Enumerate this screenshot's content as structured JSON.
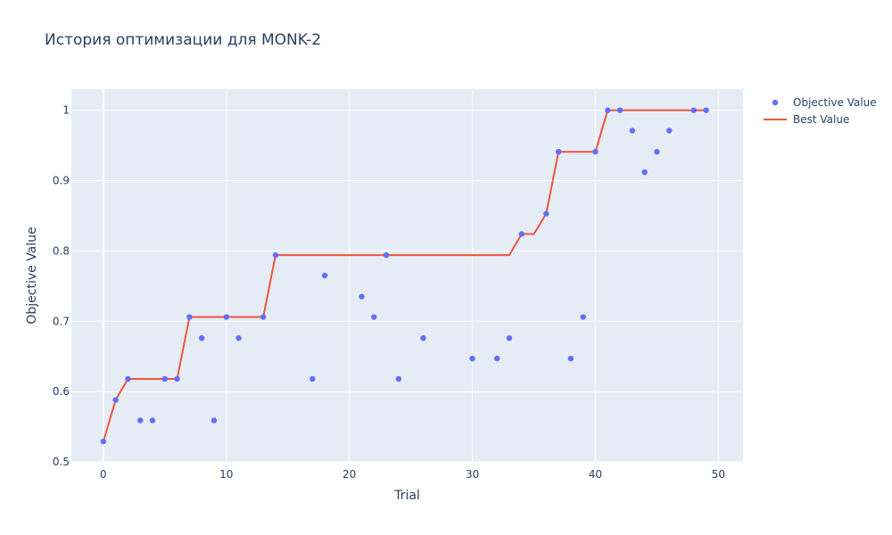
{
  "chart_data": {
    "type": "line",
    "title": "История оптимизации для MONK-2",
    "xlabel": "Trial",
    "ylabel": "Objective Value",
    "xlim": [
      -2.6,
      52.0
    ],
    "ylim": [
      0.5,
      1.03
    ],
    "x_ticks": [
      0,
      10,
      20,
      30,
      40,
      50
    ],
    "y_ticks": [
      0.5,
      0.6,
      0.7,
      0.8,
      0.9,
      1
    ],
    "grid": true,
    "legend_position": "top-right",
    "series": [
      {
        "name": "Objective Value",
        "kind": "scatter",
        "color": "#636efa",
        "x": [
          0,
          1,
          2,
          3,
          4,
          5,
          6,
          7,
          8,
          9,
          10,
          11,
          13,
          14,
          17,
          18,
          21,
          22,
          23,
          24,
          26,
          30,
          32,
          33,
          34,
          36,
          37,
          38,
          39,
          40,
          41,
          42,
          43,
          44,
          45,
          46,
          48,
          49
        ],
        "y": [
          0.529,
          0.588,
          0.618,
          0.559,
          0.559,
          0.618,
          0.618,
          0.706,
          0.676,
          0.559,
          0.706,
          0.676,
          0.706,
          0.794,
          0.618,
          0.765,
          0.735,
          0.706,
          0.794,
          0.618,
          0.676,
          0.647,
          0.647,
          0.676,
          0.824,
          0.853,
          0.941,
          0.647,
          0.706,
          0.941,
          1.0,
          1.0,
          0.971,
          0.912,
          0.941,
          0.971,
          1.0,
          1.0
        ]
      },
      {
        "name": "Best Value",
        "kind": "line",
        "color": "#ef553b",
        "x": [
          0,
          1,
          2,
          3,
          4,
          5,
          6,
          7,
          8,
          9,
          10,
          11,
          12,
          13,
          14,
          15,
          16,
          17,
          18,
          19,
          20,
          21,
          22,
          23,
          24,
          25,
          26,
          27,
          28,
          29,
          30,
          31,
          32,
          33,
          34,
          35,
          36,
          37,
          38,
          39,
          40,
          41,
          42,
          43,
          44,
          45,
          46,
          47,
          48,
          49
        ],
        "y": [
          0.529,
          0.588,
          0.618,
          0.618,
          0.618,
          0.618,
          0.618,
          0.706,
          0.706,
          0.706,
          0.706,
          0.706,
          0.706,
          0.706,
          0.794,
          0.794,
          0.794,
          0.794,
          0.794,
          0.794,
          0.794,
          0.794,
          0.794,
          0.794,
          0.794,
          0.794,
          0.794,
          0.794,
          0.794,
          0.794,
          0.794,
          0.794,
          0.794,
          0.794,
          0.824,
          0.824,
          0.853,
          0.941,
          0.941,
          0.941,
          0.941,
          1.0,
          1.0,
          1.0,
          1.0,
          1.0,
          1.0,
          1.0,
          1.0,
          1.0
        ]
      }
    ]
  },
  "colors": {
    "plot_background": "#e5ecf6",
    "grid": "#ffffff",
    "text": "#2a3f5f"
  }
}
